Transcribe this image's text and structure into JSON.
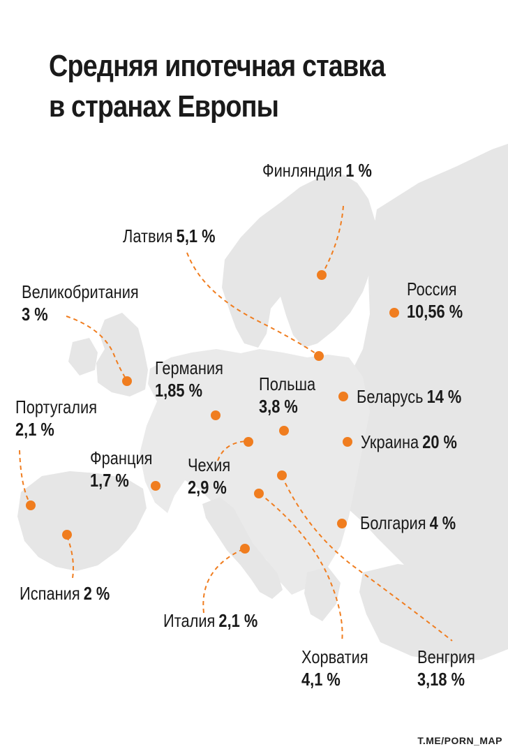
{
  "title": {
    "line1": "Средняя ипотечная ставка",
    "line2": "в странах Европы"
  },
  "colors": {
    "marker": "#f07d1f",
    "land_primary": "#e6e6e6",
    "land_secondary": "#efefef",
    "text": "#1a1a1a"
  },
  "metric": "Средняя ипотечная ставка",
  "countries": [
    {
      "id": "finland",
      "name": "Финляндия",
      "value": "1 %"
    },
    {
      "id": "latvia",
      "name": "Латвия",
      "value": "5,1 %"
    },
    {
      "id": "uk",
      "name": "Великобритания",
      "value": "3 %"
    },
    {
      "id": "russia",
      "name": "Россия",
      "value": "10,56 %"
    },
    {
      "id": "germany",
      "name": "Германия",
      "value": "1,85 %"
    },
    {
      "id": "poland",
      "name": "Польша",
      "value": "3,8 %"
    },
    {
      "id": "belarus",
      "name": "Беларусь",
      "value": "14 %"
    },
    {
      "id": "portugal",
      "name": "Португалия",
      "value": "2,1 %"
    },
    {
      "id": "ukraine",
      "name": "Украина",
      "value": "20 %"
    },
    {
      "id": "france",
      "name": "Франция",
      "value": "1,7 %"
    },
    {
      "id": "czechia",
      "name": "Чехия",
      "value": "2,9 %"
    },
    {
      "id": "bulgaria",
      "name": "Болгария",
      "value": "4 %"
    },
    {
      "id": "spain",
      "name": "Испания",
      "value": "2 %"
    },
    {
      "id": "italy",
      "name": "Италия",
      "value": "2,1 %"
    },
    {
      "id": "croatia",
      "name": "Хорватия",
      "value": "4,1 %"
    },
    {
      "id": "hungary",
      "name": "Венгрия",
      "value": "3,18 %"
    }
  ],
  "credit": "T.ME/PORN_MAP"
}
